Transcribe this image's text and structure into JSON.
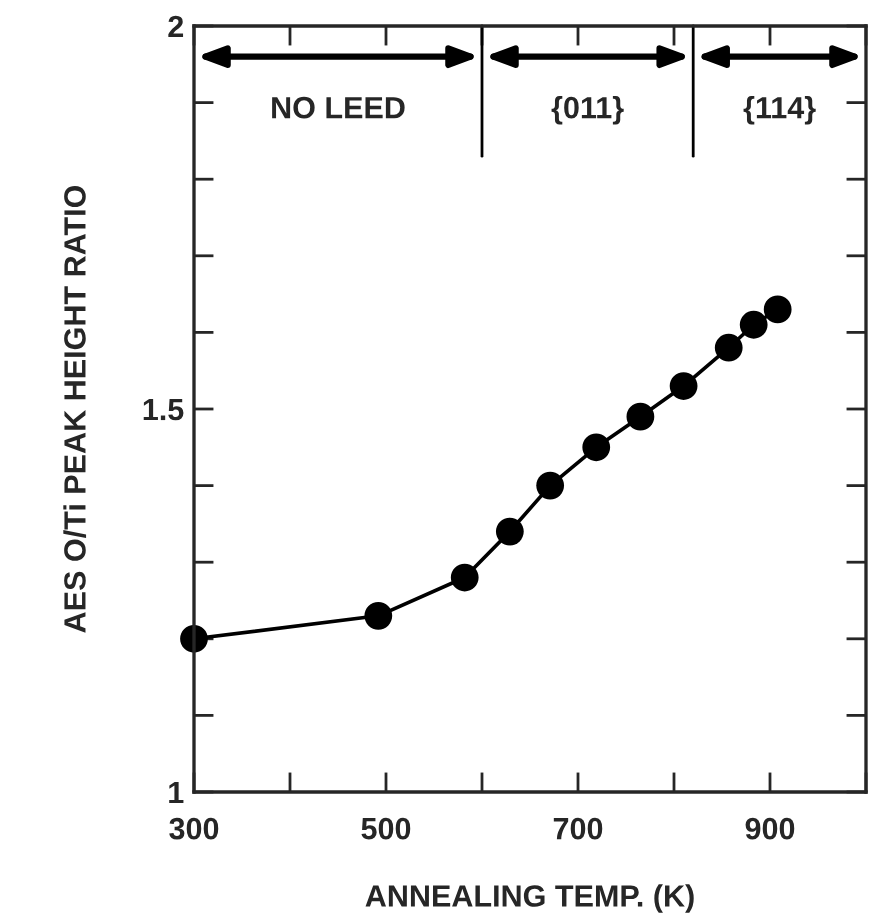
{
  "chart_data": {
    "type": "line",
    "xlabel": "ANNEALING TEMP. (K)",
    "ylabel": "AES O/Ti PEAK HEIGHT RATIO",
    "x": [
      300,
      492,
      582,
      629,
      671,
      719,
      765,
      810,
      857,
      883,
      908
    ],
    "series": [
      {
        "color": "#000000",
        "values": [
          1.2,
          1.23,
          1.28,
          1.34,
          1.4,
          1.45,
          1.49,
          1.53,
          1.58,
          1.61,
          1.63
        ]
      }
    ],
    "marker": "circle",
    "line_style": "solid",
    "grid": false,
    "legend": false,
    "xlim": [
      300,
      1000
    ],
    "ylim": [
      1,
      2
    ],
    "xticks": [
      300,
      {
        "value": 400,
        "label": null
      },
      500,
      {
        "value": 600,
        "label": null
      },
      700,
      {
        "value": 800,
        "label": null
      },
      900,
      {
        "value": 1000,
        "label": null
      }
    ],
    "yticks": [
      1,
      {
        "value": 1.1,
        "label": null
      },
      {
        "value": 1.2,
        "label": null
      },
      {
        "value": 1.3,
        "label": null
      },
      {
        "value": 1.4,
        "label": null
      },
      1.5,
      {
        "value": 1.6,
        "label": null
      },
      {
        "value": 1.7,
        "label": null
      },
      {
        "value": 1.8,
        "label": null
      },
      {
        "value": 1.9,
        "label": null
      },
      2
    ],
    "ref_lines": [
      {
        "axis": "x",
        "value": 600
      },
      {
        "axis": "x",
        "value": 820
      }
    ],
    "annotations": [
      "NO LEED",
      "{011}",
      "{114}"
    ]
  }
}
